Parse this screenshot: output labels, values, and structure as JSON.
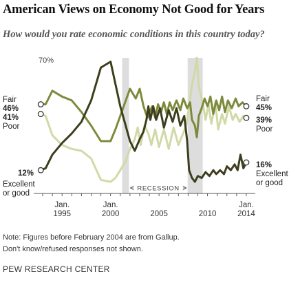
{
  "title": "American Views on Economy Not Good for Years",
  "subtitle": "How would you rate economic conditions in this country today?",
  "notes": [
    "Note: Figures before February 2004 are from Gallup.",
    "Don't know/refused responses not shown."
  ],
  "source": "PEW RESEARCH CENTER",
  "colors": {
    "fair": "#7d8a3c",
    "poor": "#d2d9a6",
    "excellent": "#3e3e1e",
    "recession": "#dddddd",
    "axis": "#555555"
  },
  "chart_data": {
    "type": "line",
    "xlim": [
      1992.5,
      2014.5
    ],
    "ylim": [
      0,
      70
    ],
    "y_top_label": "70%",
    "x_ticks": [
      {
        "x": 1995,
        "label": "Jan.\n1995"
      },
      {
        "x": 2000,
        "label": "Jan.\n2000"
      },
      {
        "x": 2005,
        "label": "2005"
      },
      {
        "x": 2010,
        "label": "2010"
      },
      {
        "x": 2014,
        "label": "Jan.\n2014"
      }
    ],
    "recessions": [
      {
        "start": 2001.2,
        "end": 2001.9
      },
      {
        "start": 2007.95,
        "end": 2009.5
      }
    ],
    "recession_label": "RECESSION",
    "series": [
      {
        "key": "fair",
        "name": "Fair",
        "start_label": "46%",
        "end_label": "45%",
        "points": [
          [
            1992.8,
            46
          ],
          [
            1993.3,
            46
          ],
          [
            1994,
            53
          ],
          [
            1995,
            50
          ],
          [
            1996,
            48
          ],
          [
            1997,
            42
          ],
          [
            1998,
            35
          ],
          [
            1999,
            27
          ],
          [
            2000,
            27
          ],
          [
            2000.5,
            33
          ],
          [
            2001,
            40
          ],
          [
            2001.5,
            47
          ],
          [
            2002,
            54
          ],
          [
            2002.6,
            49
          ],
          [
            2003,
            54
          ],
          [
            2003.4,
            45
          ],
          [
            2003.8,
            39
          ],
          [
            2004.1,
            43
          ],
          [
            2004.3,
            45
          ],
          [
            2004.6,
            39
          ],
          [
            2004.9,
            46
          ],
          [
            2005.2,
            42
          ],
          [
            2005.5,
            47
          ],
          [
            2005.8,
            41
          ],
          [
            2006.1,
            47
          ],
          [
            2006.4,
            43
          ],
          [
            2006.8,
            48
          ],
          [
            2007.2,
            43
          ],
          [
            2007.5,
            49
          ],
          [
            2007.9,
            44
          ],
          [
            2008.2,
            47
          ],
          [
            2008.4,
            38
          ],
          [
            2008.7,
            35
          ],
          [
            2008.9,
            29
          ],
          [
            2009.1,
            40
          ],
          [
            2009.4,
            44
          ],
          [
            2009.7,
            49
          ],
          [
            2010,
            45
          ],
          [
            2010.3,
            50
          ],
          [
            2010.6,
            41
          ],
          [
            2010.9,
            48
          ],
          [
            2011.2,
            43
          ],
          [
            2011.5,
            50
          ],
          [
            2011.8,
            42
          ],
          [
            2012.1,
            48
          ],
          [
            2012.5,
            44
          ],
          [
            2012.9,
            49
          ],
          [
            2013.2,
            45
          ],
          [
            2013.6,
            47
          ],
          [
            2014,
            45
          ]
        ]
      },
      {
        "key": "poor",
        "name": "Poor",
        "start_label": "41%",
        "end_label": "39%",
        "points": [
          [
            1992.8,
            41
          ],
          [
            1993.3,
            40
          ],
          [
            1994,
            30
          ],
          [
            1995,
            25
          ],
          [
            1996,
            23
          ],
          [
            1997,
            22
          ],
          [
            1998,
            18
          ],
          [
            1999,
            7
          ],
          [
            2000,
            6
          ],
          [
            2000.5,
            8
          ],
          [
            2001,
            12
          ],
          [
            2001.6,
            17
          ],
          [
            2002,
            23
          ],
          [
            2002.5,
            28
          ],
          [
            2002.8,
            34
          ],
          [
            2003.1,
            25
          ],
          [
            2003.5,
            35
          ],
          [
            2003.9,
            31
          ],
          [
            2004.2,
            25
          ],
          [
            2004.6,
            33
          ],
          [
            2005,
            24
          ],
          [
            2005.5,
            33
          ],
          [
            2006,
            23
          ],
          [
            2006.5,
            34
          ],
          [
            2007,
            25
          ],
          [
            2007.4,
            30
          ],
          [
            2007.8,
            35
          ],
          [
            2008.1,
            45
          ],
          [
            2008.4,
            56
          ],
          [
            2008.7,
            63
          ],
          [
            2008.9,
            70
          ],
          [
            2009.1,
            55
          ],
          [
            2009.5,
            47
          ],
          [
            2009.8,
            38
          ],
          [
            2010.1,
            46
          ],
          [
            2010.4,
            36
          ],
          [
            2010.8,
            47
          ],
          [
            2011.1,
            33
          ],
          [
            2011.5,
            41
          ],
          [
            2011.8,
            36
          ],
          [
            2012.2,
            45
          ],
          [
            2012.6,
            38
          ],
          [
            2012.9,
            41
          ],
          [
            2013.3,
            37
          ],
          [
            2013.7,
            40
          ],
          [
            2014,
            39
          ]
        ]
      },
      {
        "key": "excellent",
        "name": "Excellent\nor good",
        "start_label": "12%",
        "end_label": "16%",
        "points": [
          [
            1992.8,
            12
          ],
          [
            1993.3,
            13
          ],
          [
            1994,
            20
          ],
          [
            1995,
            26
          ],
          [
            1996,
            31
          ],
          [
            1997,
            37
          ],
          [
            1998,
            48
          ],
          [
            1999,
            65
          ],
          [
            2000,
            68
          ],
          [
            2001,
            45
          ],
          [
            2002,
            27
          ],
          [
            2002.5,
            22
          ],
          [
            2003,
            28
          ],
          [
            2003.4,
            32
          ],
          [
            2003.7,
            38
          ],
          [
            2003.9,
            45
          ],
          [
            2004.1,
            38
          ],
          [
            2004.4,
            45
          ],
          [
            2004.7,
            38
          ],
          [
            2005.1,
            44
          ],
          [
            2005.5,
            34
          ],
          [
            2006,
            43
          ],
          [
            2006.4,
            37
          ],
          [
            2006.8,
            44
          ],
          [
            2007.2,
            35
          ],
          [
            2007.6,
            40
          ],
          [
            2007.9,
            27
          ],
          [
            2008.1,
            12
          ],
          [
            2008.4,
            8
          ],
          [
            2008.7,
            6
          ],
          [
            2009,
            9
          ],
          [
            2009.4,
            8
          ],
          [
            2009.8,
            11
          ],
          [
            2010.2,
            9
          ],
          [
            2010.6,
            12
          ],
          [
            2010.9,
            10
          ],
          [
            2011.3,
            12
          ],
          [
            2011.7,
            10
          ],
          [
            2012,
            14
          ],
          [
            2012.4,
            12
          ],
          [
            2012.8,
            15
          ],
          [
            2013.1,
            12
          ],
          [
            2013.4,
            20
          ],
          [
            2013.7,
            13
          ],
          [
            2014,
            16
          ]
        ]
      }
    ]
  }
}
